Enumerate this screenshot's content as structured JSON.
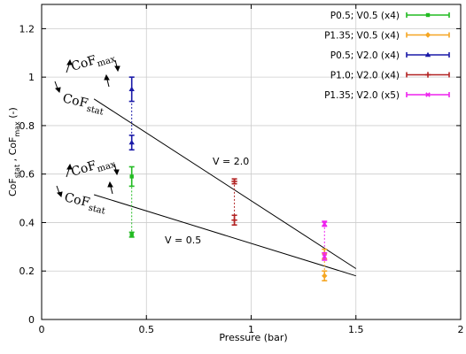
{
  "chart_data": {
    "type": "scatter",
    "title": "",
    "xlabel": "Pressure (bar)",
    "ylabel_parts": [
      "CoF",
      "stat",
      " , CoF",
      "max",
      "  (-)"
    ],
    "xlim": [
      0,
      2
    ],
    "ylim": [
      0,
      1.3
    ],
    "xticks": [
      0,
      0.5,
      1,
      1.5,
      2
    ],
    "yticks": [
      0,
      0.2,
      0.4,
      0.6,
      0.8,
      1,
      1.2
    ],
    "xtick_labels": [
      "0",
      "0.5",
      "1",
      "1.5",
      "2"
    ],
    "ytick_labels": [
      "0",
      "0.2",
      "0.4",
      "0.6",
      "0.8",
      "1",
      "1.2"
    ],
    "grid": true,
    "legend_position": "top-right",
    "series": [
      {
        "name": "P0.5; V0.5 (x4)",
        "color": "#22bb22",
        "marker": "square",
        "points": [
          {
            "x": 0.43,
            "y": 0.59,
            "err": 0.04
          },
          {
            "x": 0.43,
            "y": 0.35,
            "err": 0.01
          }
        ]
      },
      {
        "name": "P1.35; V0.5 (x4)",
        "color": "#f5a623",
        "marker": "diamond",
        "points": [
          {
            "x": 1.35,
            "y": 0.27,
            "err": 0.02
          },
          {
            "x": 1.35,
            "y": 0.18,
            "err": 0.02
          }
        ]
      },
      {
        "name": "P0.5; V2.0 (x4)",
        "color": "#1a1aa8",
        "marker": "triangle",
        "points": [
          {
            "x": 0.43,
            "y": 0.95,
            "err": 0.05
          },
          {
            "x": 0.43,
            "y": 0.73,
            "err": 0.03
          }
        ]
      },
      {
        "name": "P1.0; V2.0 (x4)",
        "color": "#b22222",
        "marker": "plus",
        "points": [
          {
            "x": 0.92,
            "y": 0.57,
            "err": 0.01
          },
          {
            "x": 0.92,
            "y": 0.41,
            "err": 0.02
          }
        ]
      },
      {
        "name": "P1.35; V2.0 (x5)",
        "color": "#ee22ee",
        "marker": "cross",
        "points": [
          {
            "x": 1.35,
            "y": 0.395,
            "err": 0.01
          },
          {
            "x": 1.35,
            "y": 0.26,
            "err": 0.015
          }
        ]
      }
    ],
    "fit_lines": [
      {
        "label": "V = 2.0",
        "from": [
          0.25,
          0.91
        ],
        "to": [
          1.5,
          0.21
        ]
      },
      {
        "label": "V = 0.5",
        "from": [
          0.25,
          0.515
        ],
        "to": [
          1.5,
          0.18
        ]
      }
    ],
    "annotations": [
      {
        "text": "V = 2.0",
        "x": 0.81,
        "y": 0.66
      },
      {
        "text": "V = 0.5",
        "x": 0.6,
        "y": 0.355
      }
    ],
    "cof_groups": [
      {
        "max_main": "CoF",
        "max_sub": "max",
        "stat_main": "CoF",
        "stat_sub": "stat"
      },
      {
        "max_main": "CoF",
        "max_sub": "max",
        "stat_main": "CoF",
        "stat_sub": "stat"
      }
    ]
  }
}
